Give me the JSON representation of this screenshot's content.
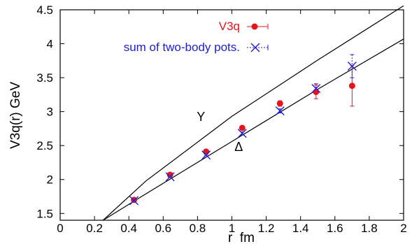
{
  "chart_data": {
    "type": "scatter",
    "xlabel": "r  fm",
    "ylabel": "V3q(r) GeV",
    "xlim": [
      0,
      2
    ],
    "ylim": [
      1.4,
      4.5
    ],
    "xticks": [
      "0",
      "0.2",
      "0.4",
      "0.6",
      "0.8",
      "1",
      "1.2",
      "1.4",
      "1.6",
      "1.8",
      "2"
    ],
    "yticks": [
      "1.5",
      "2",
      "2.5",
      "3",
      "3.5",
      "4",
      "4.5"
    ],
    "grid": false,
    "legend_position": "top-right",
    "series": [
      {
        "name": "V3q",
        "marker": "filled-circle",
        "color": "#e8141c",
        "x": [
          0.43,
          0.64,
          0.85,
          1.06,
          1.28,
          1.49,
          1.7
        ],
        "y": [
          1.7,
          2.07,
          2.41,
          2.76,
          3.12,
          3.29,
          3.38
        ],
        "yerr": [
          0.02,
          0.02,
          0.03,
          0.03,
          0.04,
          0.1,
          0.3
        ]
      },
      {
        "name": "sum of two-body pots.",
        "marker": "x",
        "color": "#2020d0",
        "x": [
          0.43,
          0.64,
          0.85,
          1.06,
          1.28,
          1.49,
          1.7
        ],
        "y": [
          1.69,
          2.04,
          2.36,
          2.68,
          3.01,
          3.34,
          3.67
        ],
        "yerr": [
          0.01,
          0.01,
          0.01,
          0.02,
          0.03,
          0.07,
          0.17
        ]
      }
    ],
    "curves": [
      {
        "label": "Y",
        "color": "#000000",
        "x": [
          0.25,
          0.5,
          1.0,
          1.5,
          2.0
        ],
        "y": [
          1.4,
          1.98,
          2.93,
          3.76,
          4.56
        ]
      },
      {
        "label": "Δ",
        "color": "#000000",
        "x": [
          0.25,
          0.5,
          1.0,
          1.5,
          2.0
        ],
        "y": [
          1.4,
          1.79,
          2.56,
          3.33,
          4.07
        ]
      }
    ],
    "annotations": [
      {
        "text": "Y",
        "x": 0.82,
        "y": 2.86
      },
      {
        "text": "Δ",
        "x": 1.04,
        "y": 2.42
      }
    ]
  }
}
